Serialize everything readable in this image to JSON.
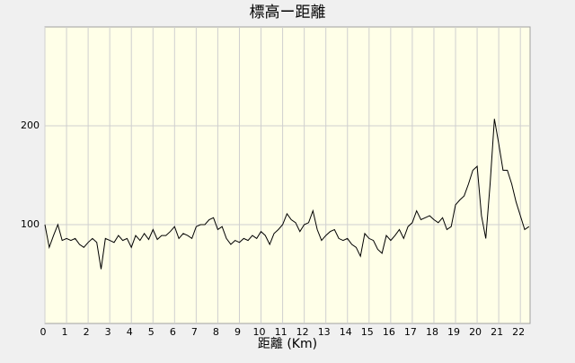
{
  "chart_data": {
    "type": "line",
    "title": "標高ー距離",
    "x_label": "距離 (Km)",
    "x": [
      0,
      0.2,
      0.4,
      0.6,
      0.8,
      1.0,
      1.2,
      1.4,
      1.6,
      1.8,
      2.0,
      2.2,
      2.4,
      2.6,
      2.8,
      3.0,
      3.2,
      3.4,
      3.6,
      3.8,
      4.0,
      4.2,
      4.4,
      4.6,
      4.8,
      5.0,
      5.2,
      5.4,
      5.6,
      5.8,
      6.0,
      6.2,
      6.4,
      6.6,
      6.8,
      7.0,
      7.2,
      7.4,
      7.6,
      7.8,
      8.0,
      8.2,
      8.4,
      8.6,
      8.8,
      9.0,
      9.2,
      9.4,
      9.6,
      9.8,
      10.0,
      10.2,
      10.4,
      10.6,
      10.8,
      11.0,
      11.2,
      11.4,
      11.6,
      11.8,
      12.0,
      12.2,
      12.4,
      12.6,
      12.8,
      13.0,
      13.2,
      13.4,
      13.6,
      13.8,
      14.0,
      14.2,
      14.4,
      14.6,
      14.8,
      15.0,
      15.2,
      15.4,
      15.6,
      15.8,
      16.0,
      16.2,
      16.4,
      16.6,
      16.8,
      17.0,
      17.2,
      17.4,
      17.6,
      17.8,
      18.0,
      18.2,
      18.4,
      18.6,
      18.8,
      19.0,
      19.2,
      19.4,
      19.6,
      19.8,
      20.0,
      20.2,
      20.4,
      20.6,
      20.8,
      21.0,
      21.2,
      21.4,
      21.6,
      21.8,
      22.0,
      22.2,
      22.4
    ],
    "series": [
      {
        "color": "#000000",
        "values": [
          100,
          77,
          89,
          100,
          84,
          86,
          84,
          86,
          80,
          77,
          82,
          86,
          82,
          55,
          86,
          84,
          82,
          89,
          84,
          86,
          77,
          89,
          84,
          91,
          85,
          95,
          85,
          89,
          89,
          93,
          98,
          86,
          91,
          89,
          86,
          98,
          100,
          100,
          105,
          107,
          95,
          98,
          86,
          80,
          84,
          82,
          86,
          84,
          89,
          86,
          93,
          89,
          80,
          91,
          95,
          100,
          111,
          105,
          102,
          93,
          100,
          102,
          114,
          95,
          84,
          89,
          93,
          95,
          86,
          84,
          86,
          80,
          77,
          68,
          91,
          86,
          84,
          75,
          71,
          89,
          84,
          89,
          95,
          86,
          98,
          102,
          114,
          105,
          107,
          109,
          105,
          102,
          107,
          95,
          98,
          120,
          125,
          129,
          141,
          155,
          159,
          109,
          86,
          141,
          207,
          182,
          155,
          155,
          141,
          123,
          109,
          95,
          98
        ]
      }
    ],
    "xlim": [
      0,
      22.45
    ],
    "ylim": [
      0,
      300
    ],
    "xticks": [
      0,
      1,
      2,
      3,
      4,
      5,
      6,
      7,
      8,
      9,
      10,
      11,
      12,
      13,
      14,
      15,
      16,
      17,
      18,
      19,
      20,
      21,
      22
    ],
    "yticks": [
      100,
      200
    ],
    "grid": true
  }
}
